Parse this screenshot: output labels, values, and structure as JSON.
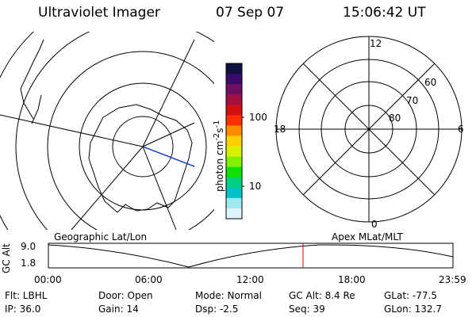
{
  "header": {
    "instrument": "Ultraviolet Imager",
    "date": "07 Sep 07",
    "time": "15:06:42 UT"
  },
  "colorbar": {
    "label": "photon cm",
    "label_sup1": "-2",
    "label_s": "s",
    "label_sup2": "-1",
    "ticks": [
      "100",
      "10"
    ],
    "colors": [
      "#101040",
      "#3a0a6a",
      "#701060",
      "#a01040",
      "#d01010",
      "#ff3000",
      "#ff8c00",
      "#ffd000",
      "#d8f000",
      "#80f000",
      "#10e000",
      "#00d080",
      "#00c0c8",
      "#a0e8f0",
      "#ddf4f8"
    ]
  },
  "left_map": {
    "caption": "Geographic Lat/Lon"
  },
  "right_map": {
    "caption": "Apex MLat/MLT",
    "mlt_labels": {
      "top": "12",
      "bottom": "0",
      "left": "18",
      "right": "6"
    },
    "mlat_labels": [
      "60",
      "70",
      "80"
    ]
  },
  "altitude_plot": {
    "ylabel": "GC Alt",
    "yticks": [
      "9.0",
      "1.8"
    ],
    "xticks": [
      "00:00",
      "06:00",
      "12:00",
      "18:00",
      "23:59"
    ],
    "marker_color": "#e00000"
  },
  "info": {
    "flt": "Flt:  LBHL",
    "ip": "IP:  36.0",
    "door": "Door:  Open",
    "gain": "Gain:  14",
    "mode": "Mode:  Normal",
    "dsp": "Dsp:     -2.5",
    "gcalt": "GC Alt:  8.4 Re",
    "seq": "Seq:  39",
    "glat": "GLat:   -77.5",
    "glon": "GLon:  132.7"
  }
}
